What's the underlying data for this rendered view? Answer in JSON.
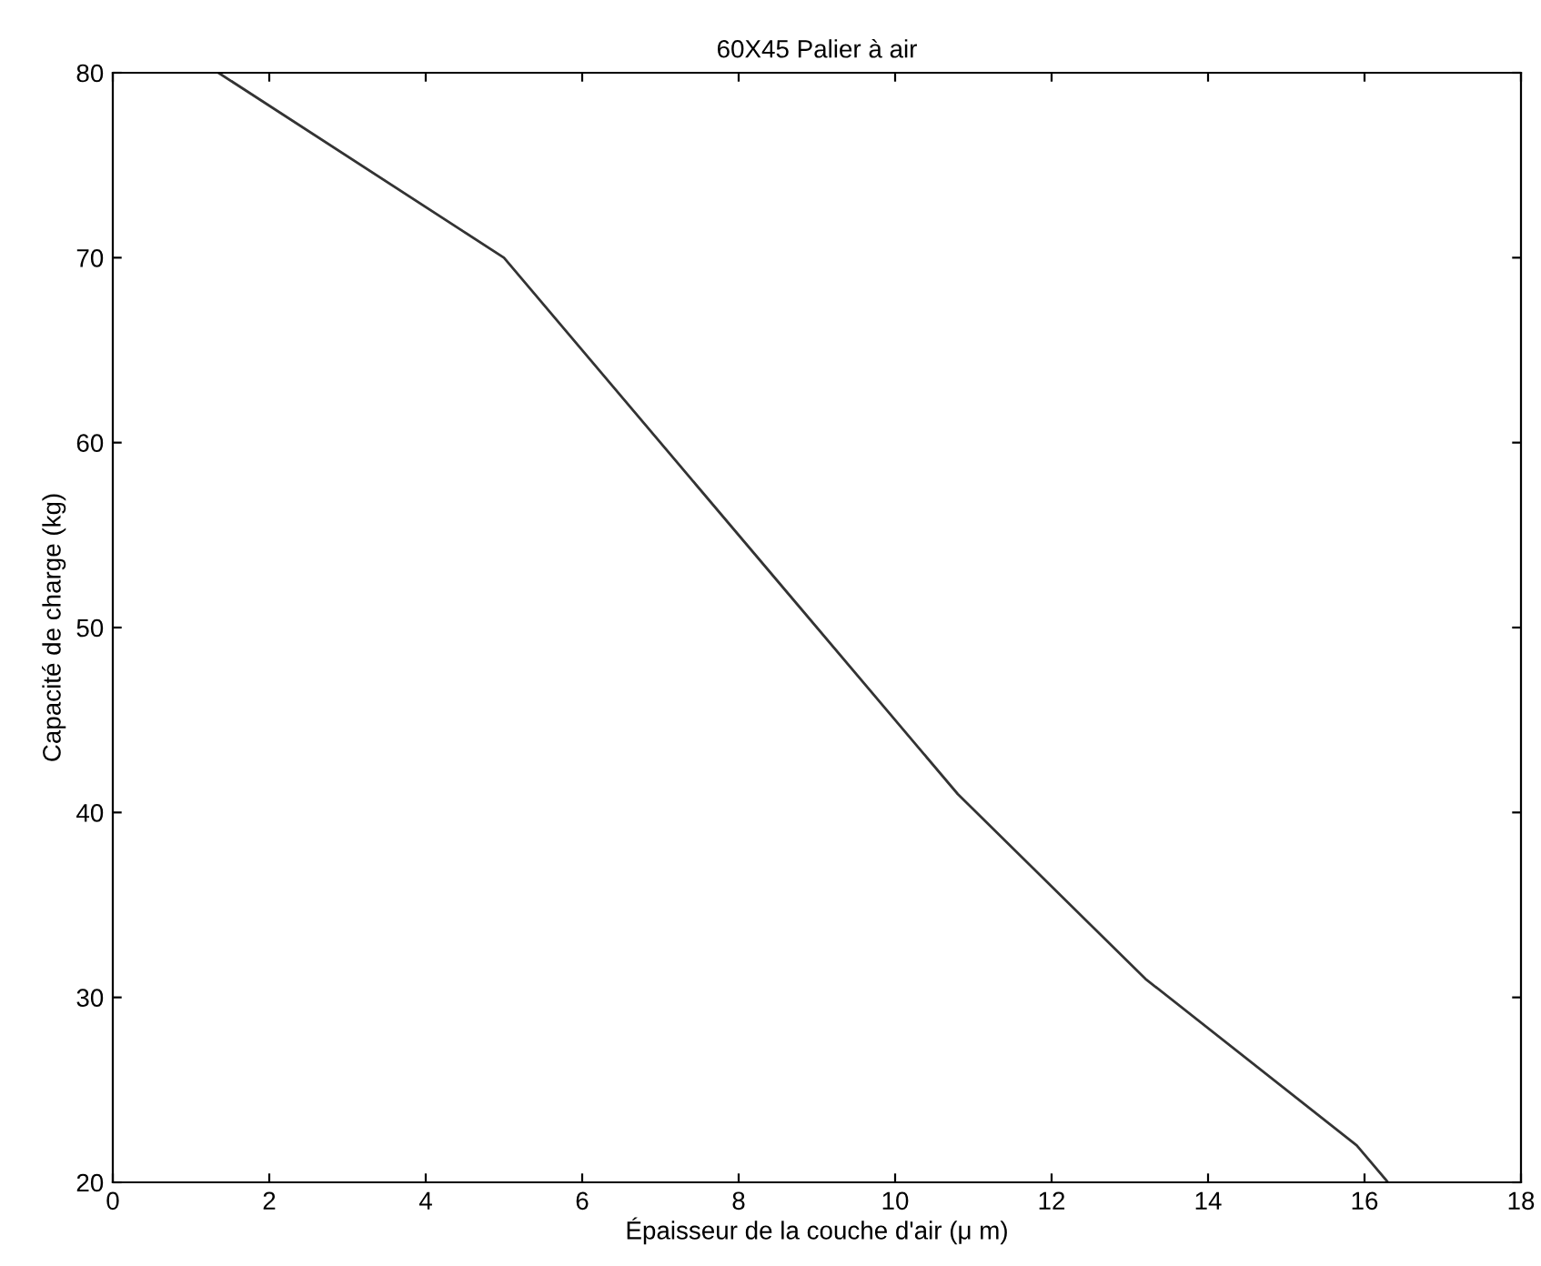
{
  "chart_data": {
    "type": "line",
    "title": "60X45 Palier à air",
    "xlabel": "Épaisseur de la couche d'air (μ m)",
    "ylabel": "Capacité de charge (kg)",
    "x": [
      1.35,
      5.0,
      8.7,
      10.8,
      13.2,
      15.9,
      16.3
    ],
    "series": [
      {
        "color": "#333333",
        "values": [
          80,
          70,
          51.5,
          41,
          31,
          22,
          20
        ]
      }
    ],
    "xlim": [
      0,
      18
    ],
    "xticks": [
      0,
      2,
      4,
      6,
      8,
      10,
      12,
      14,
      16,
      18
    ],
    "ylim": [
      20,
      80
    ],
    "yticks": [
      20,
      30,
      40,
      50,
      60,
      70,
      80
    ],
    "grid": false,
    "legend": false
  }
}
